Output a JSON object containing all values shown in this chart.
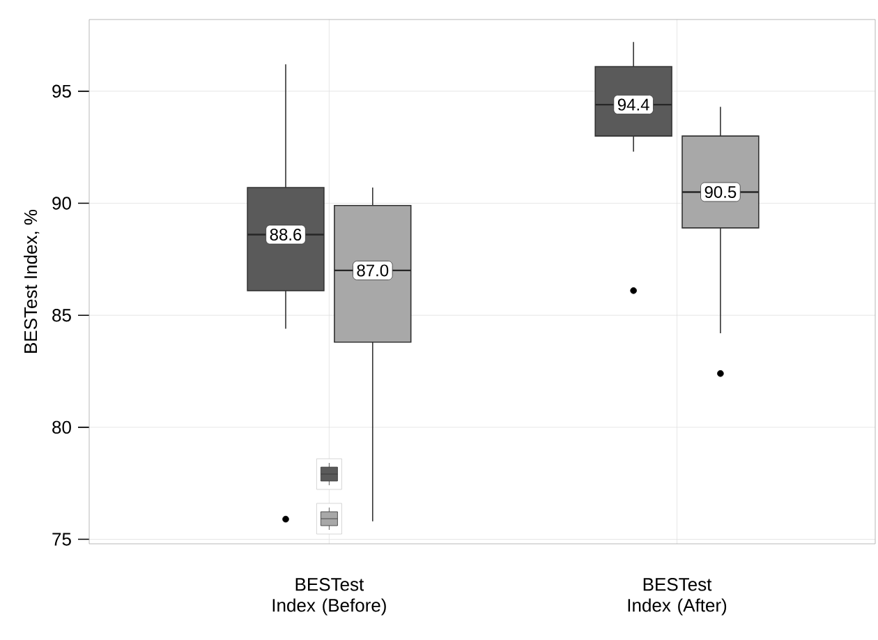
{
  "chart_data": {
    "type": "box",
    "ylabel": "BESTest Index, %",
    "categories": [
      "BESTest Index (Before)",
      "BESTest Index (After)"
    ],
    "series": [
      {
        "color": "#5a5a5a",
        "value_labels": [
          "88.6",
          "94.4"
        ],
        "boxes": [
          {
            "low": 84.4,
            "q1": 86.1,
            "median": 88.6,
            "q3": 90.7,
            "high": 96.2,
            "outliers": [
              75.9
            ]
          },
          {
            "low": 92.3,
            "q1": 93.0,
            "median": 94.4,
            "q3": 96.1,
            "high": 97.2,
            "outliers": [
              86.1
            ]
          }
        ]
      },
      {
        "color": "#a8a8a8",
        "value_labels": [
          "87.0",
          "90.5"
        ],
        "boxes": [
          {
            "low": 75.8,
            "q1": 83.8,
            "median": 87.0,
            "q3": 89.9,
            "high": 90.7
          },
          {
            "low": 84.2,
            "q1": 88.9,
            "median": 90.5,
            "q3": 93.0,
            "high": 94.3,
            "outliers": [
              82.4
            ]
          }
        ]
      }
    ],
    "ylim": [
      74.8,
      98.2
    ],
    "yticks": [
      75,
      80,
      85,
      90,
      95
    ],
    "grid": true
  }
}
